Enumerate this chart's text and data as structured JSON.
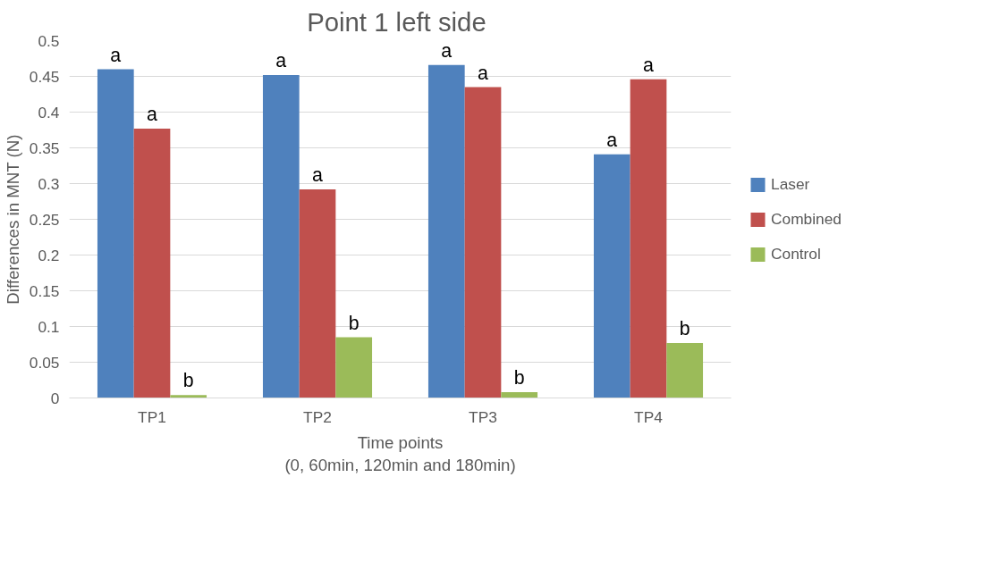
{
  "chart_data": {
    "type": "bar",
    "title": "Point 1 left  side",
    "xlabel": "Time points\n(0, 60min, 120min and 180min)",
    "ylabel": "Differences in MNT (N)",
    "categories": [
      "TP1",
      "TP2",
      "TP3",
      "TP4"
    ],
    "series": [
      {
        "name": "Laser",
        "color": "#4f81bd",
        "values": [
          0.46,
          0.452,
          0.466,
          0.341
        ]
      },
      {
        "name": "Combined",
        "color": "#c0504d",
        "values": [
          0.377,
          0.292,
          0.435,
          0.446
        ]
      },
      {
        "name": "Control",
        "color": "#9bbb59",
        "values": [
          0.004,
          0.085,
          0.008,
          0.077
        ]
      }
    ],
    "ylim": [
      0,
      0.5
    ],
    "yticks": [
      0,
      0.05,
      0.1,
      0.15,
      0.2,
      0.25,
      0.3,
      0.35,
      0.4,
      0.45,
      0.5
    ],
    "grid": "y",
    "legend": "right",
    "annotations": [
      "a",
      "a",
      "b",
      "a",
      "a",
      "b",
      "a",
      "a",
      "b",
      "a",
      "a",
      "b"
    ]
  }
}
